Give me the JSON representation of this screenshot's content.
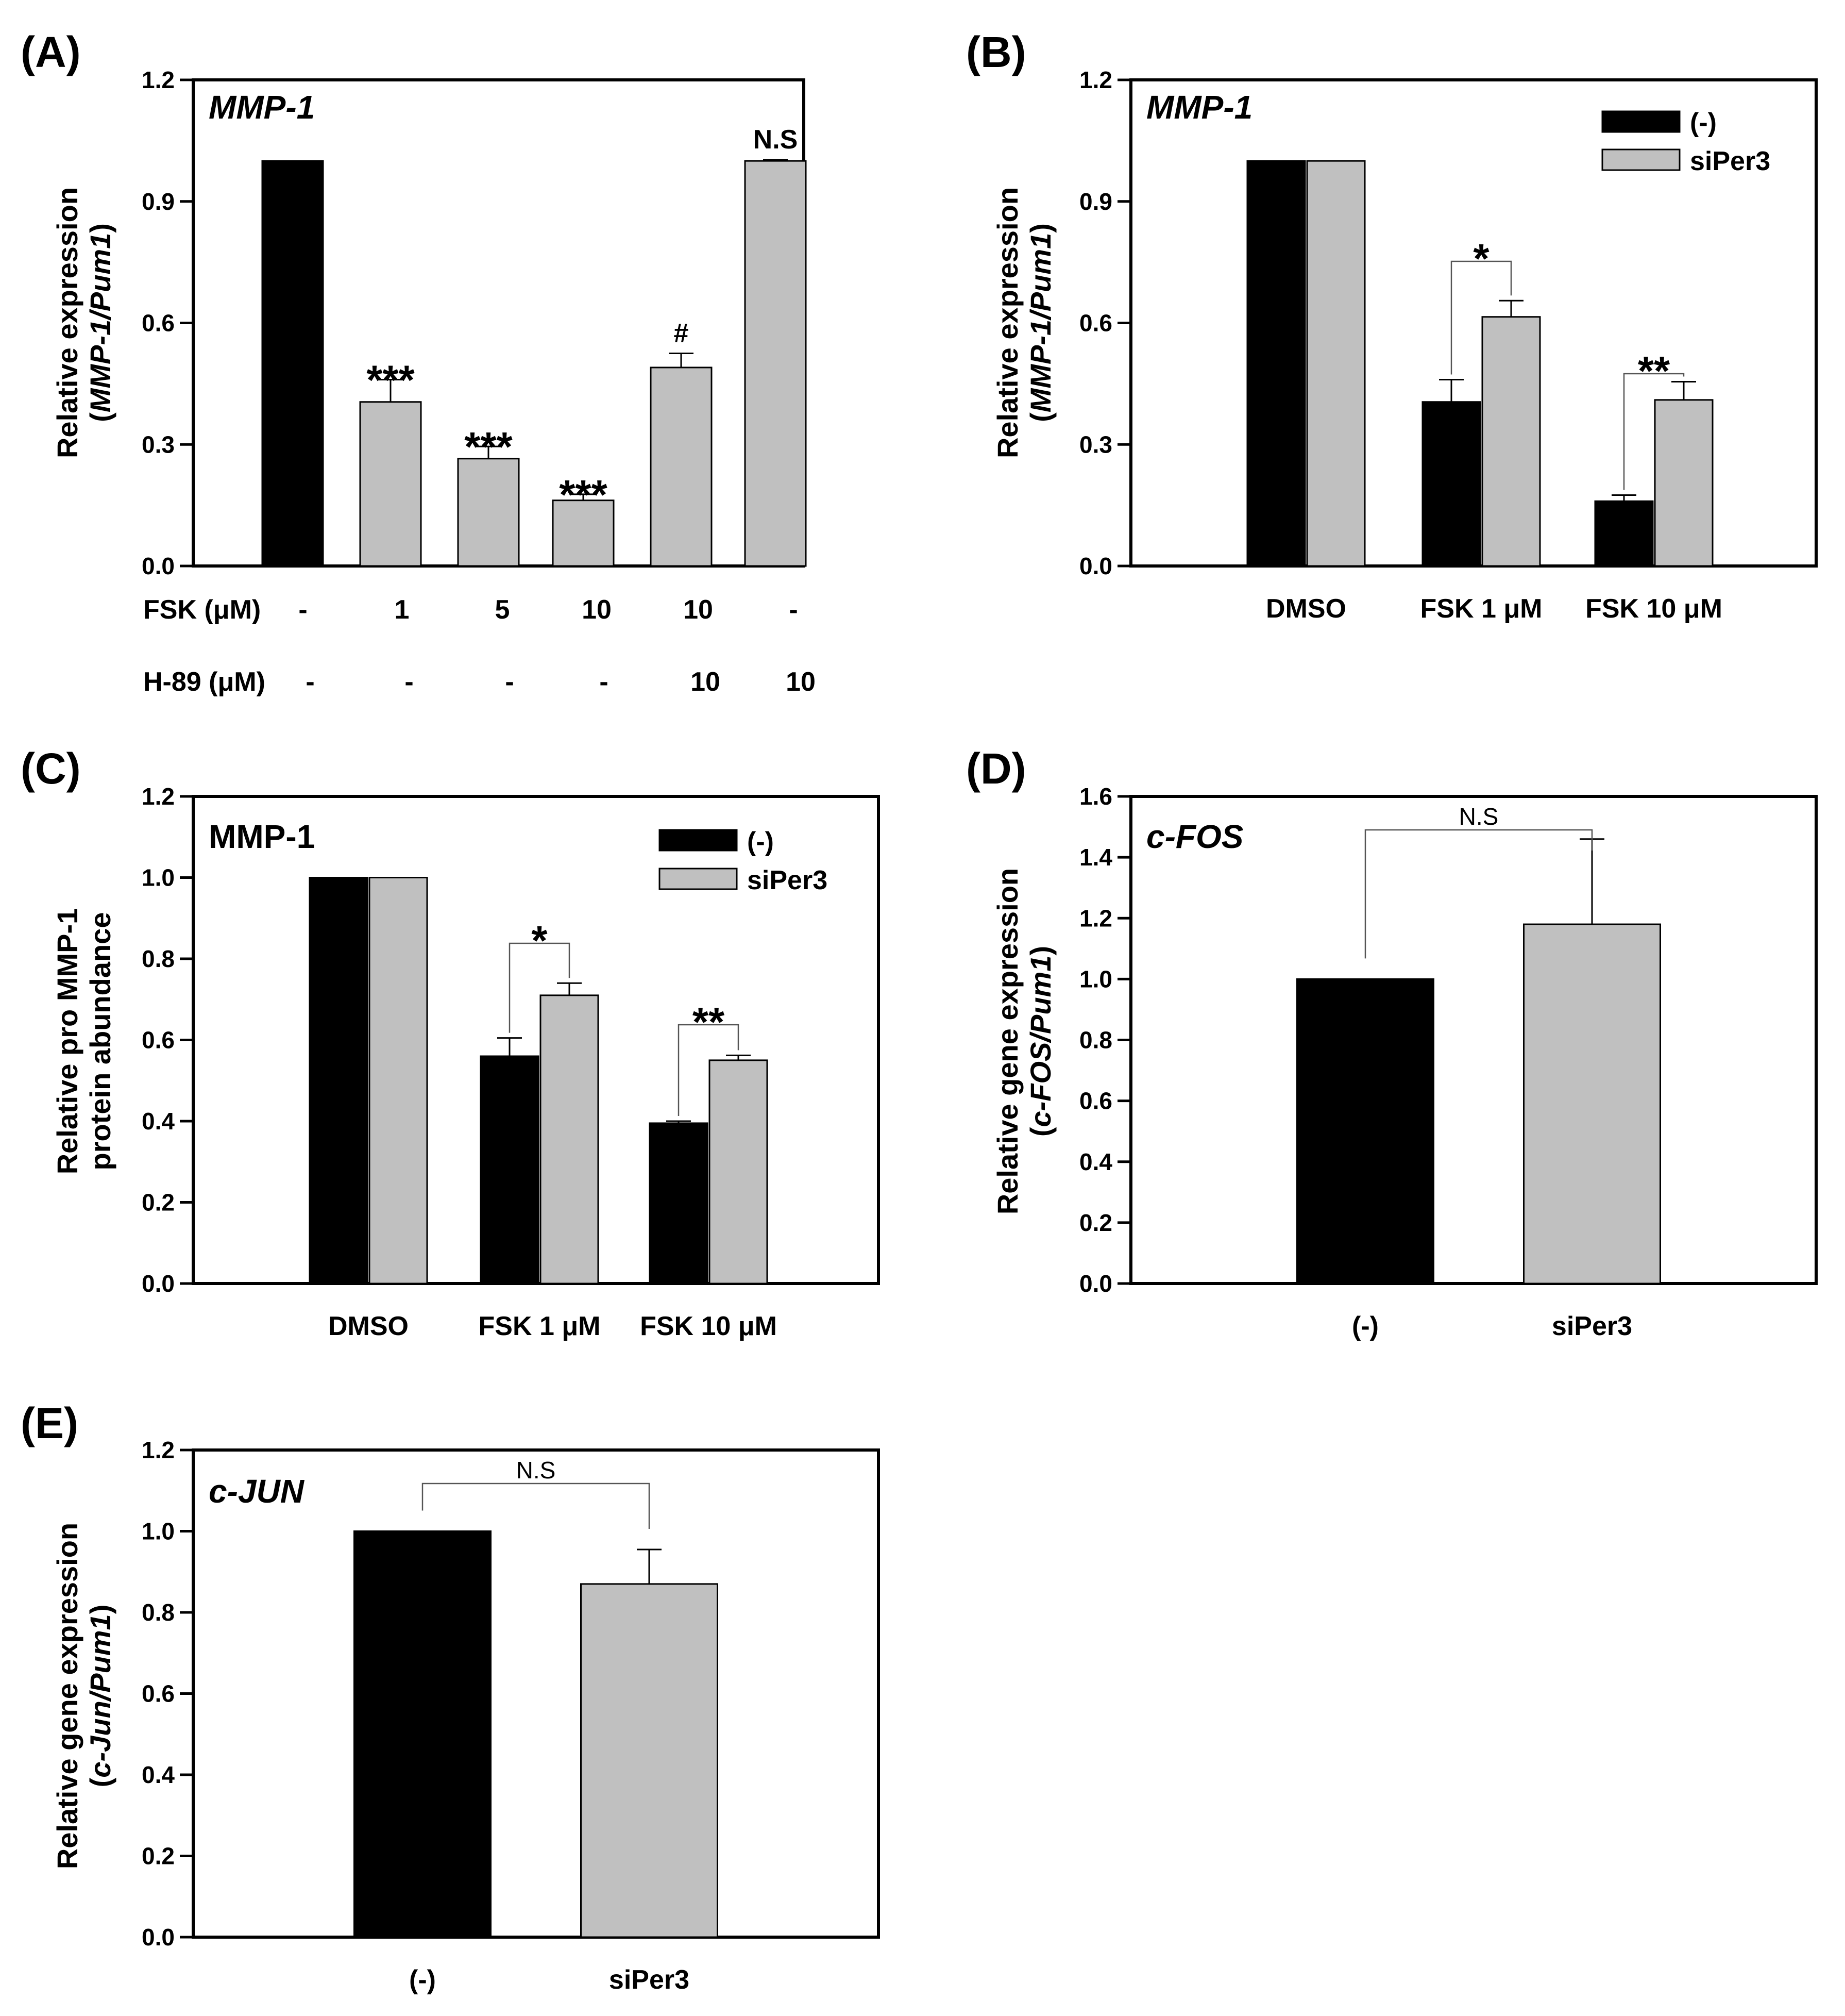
{
  "colors": {
    "black_bar": "#000000",
    "grey_bar": "#c0c0c0",
    "axis": "#000000"
  },
  "chart_data": [
    {
      "panel": "(A)",
      "type": "bar",
      "title": "MMP-1",
      "ylabel_line1": "Relative expression",
      "ylabel_open": "(",
      "ylabel_italic": "MMP-1/Pum1",
      "ylabel_close": ")",
      "ylim": [
        0,
        1.2
      ],
      "yticks": [
        "0.0",
        "0.3",
        "0.6",
        "0.9",
        "1.2"
      ],
      "ytick_values": [
        0,
        0.3,
        0.6,
        0.9,
        1.2
      ],
      "values": [
        1.0,
        0.405,
        0.265,
        0.162,
        0.49,
        1.0
      ],
      "errors": [
        0,
        0.055,
        0.03,
        0.015,
        0.035,
        0.003
      ],
      "bar_colors": [
        "black",
        "grey",
        "grey",
        "grey",
        "grey",
        "grey"
      ],
      "annotations": [
        "",
        "***",
        "***",
        "***",
        "#",
        "N.S"
      ],
      "condition_rows": [
        {
          "label": "FSK (μM)",
          "values": [
            "-",
            "1",
            "5",
            "10",
            "10",
            "-"
          ]
        },
        {
          "label": "H-89 (μM)",
          "values": [
            "-",
            "-",
            "-",
            "-",
            "10",
            "10"
          ]
        }
      ]
    },
    {
      "panel": "(B)",
      "type": "bar",
      "title": "MMP-1",
      "ylabel_line1": "Relative expression",
      "ylabel_open": "(",
      "ylabel_italic": "MMP-1/Pum1",
      "ylabel_close": ")",
      "ylim": [
        0,
        1.2
      ],
      "yticks": [
        "0.0",
        "0.3",
        "0.6",
        "0.9",
        "1.2"
      ],
      "ytick_values": [
        0,
        0.3,
        0.6,
        0.9,
        1.2
      ],
      "categories": [
        "DMSO",
        "FSK 1 μM",
        "FSK 10 μM"
      ],
      "legend": [
        "(-)",
        "siPer3"
      ],
      "series": [
        {
          "name": "(-)",
          "values": [
            1.0,
            0.405,
            0.16
          ],
          "errors": [
            0,
            0.055,
            0.015
          ]
        },
        {
          "name": "siPer3",
          "values": [
            1.0,
            0.615,
            0.41
          ],
          "errors": [
            0,
            0.04,
            0.045
          ]
        }
      ],
      "significance": [
        "",
        "*",
        "**"
      ]
    },
    {
      "panel": "(C)",
      "type": "bar",
      "title": "MMP-1",
      "ylabel_line1": "Relative pro MMP-1",
      "ylabel_line2": "protein abundance",
      "ylim": [
        0,
        1.2
      ],
      "yticks": [
        "0.0",
        "0.2",
        "0.4",
        "0.6",
        "0.8",
        "1.0",
        "1.2"
      ],
      "ytick_values": [
        0,
        0.2,
        0.4,
        0.6,
        0.8,
        1.0,
        1.2
      ],
      "categories": [
        "DMSO",
        "FSK 1 μM",
        "FSK 10 μM"
      ],
      "legend": [
        "(-)",
        "siPer3"
      ],
      "series": [
        {
          "name": "(-)",
          "values": [
            1.0,
            0.56,
            0.395
          ],
          "errors": [
            0,
            0.045,
            0.005
          ]
        },
        {
          "name": "siPer3",
          "values": [
            1.0,
            0.71,
            0.55
          ],
          "errors": [
            0,
            0.03,
            0.012
          ]
        }
      ],
      "significance": [
        "",
        "*",
        "**"
      ]
    },
    {
      "panel": "(D)",
      "type": "bar",
      "title": "c-FOS",
      "ylabel_line1": "Relative gene expression",
      "ylabel_open": "(",
      "ylabel_italic": "c-FOS/Pum1",
      "ylabel_close": ")",
      "ylim": [
        0,
        1.6
      ],
      "yticks": [
        "0.0",
        "0.2",
        "0.4",
        "0.6",
        "0.8",
        "1.0",
        "1.2",
        "1.4",
        "1.6"
      ],
      "ytick_values": [
        0,
        0.2,
        0.4,
        0.6,
        0.8,
        1.0,
        1.2,
        1.4,
        1.6
      ],
      "categories": [
        "(-)",
        "siPer3"
      ],
      "values": [
        1.0,
        1.18
      ],
      "errors": [
        0,
        0.28
      ],
      "significance": "N.S"
    },
    {
      "panel": "(E)",
      "type": "bar",
      "title": "c-JUN",
      "ylabel_line1": "Relative gene expression",
      "ylabel_open": "(",
      "ylabel_italic": "c-Jun/Pum1",
      "ylabel_close": ")",
      "ylim": [
        0,
        1.2
      ],
      "yticks": [
        "0.0",
        "0.2",
        "0.4",
        "0.6",
        "0.8",
        "1.0",
        "1.2"
      ],
      "ytick_values": [
        0,
        0.2,
        0.4,
        0.6,
        0.8,
        1.0,
        1.2
      ],
      "categories": [
        "(-)",
        "siPer3"
      ],
      "values": [
        1.0,
        0.87
      ],
      "errors": [
        0,
        0.085
      ],
      "significance": "N.S"
    }
  ]
}
